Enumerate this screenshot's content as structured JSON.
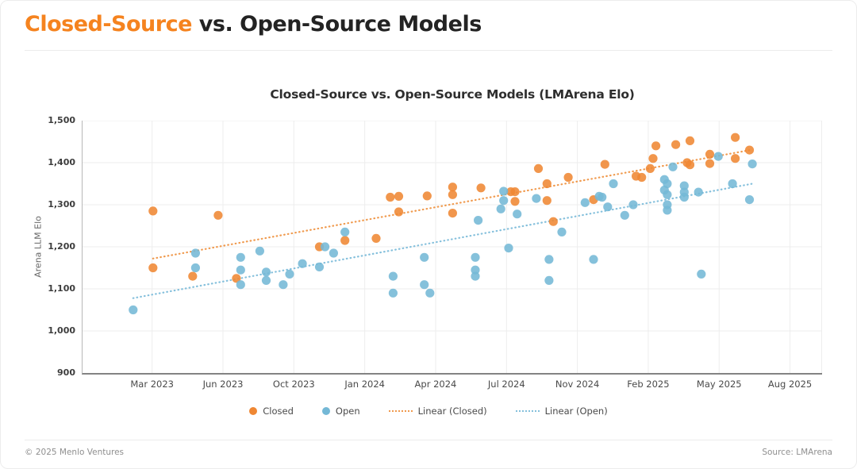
{
  "page": {
    "header": {
      "title_highlight": "Closed-Source",
      "title_rest": " vs. Open-Source Models"
    },
    "footer": {
      "copyright": "© 2025 Menlo Ventures",
      "source": "Source: LMArena"
    }
  },
  "colors": {
    "accent_orange": "#F5831F",
    "closed_dot": "#EF8733",
    "open_dot": "#74B8D6",
    "closed_trend": "#F09A4E",
    "open_trend": "#85C0DC",
    "gridline": "#ededed",
    "axis_left": "#b8b8b8",
    "axis_bottom": "#838383"
  },
  "chart_data": {
    "type": "scatter",
    "title": "Closed-Source vs. Open-Source Models (LMArena Elo)",
    "xlabel": "",
    "ylabel": "Arena LLM Elo",
    "ylim": [
      900,
      1500
    ],
    "grid": true,
    "legend_position": "bottom",
    "yticks": [
      {
        "label": "1,500",
        "value": 1500
      },
      {
        "label": "1,400",
        "value": 1400
      },
      {
        "label": "1,300",
        "value": 1300
      },
      {
        "label": "1,200",
        "value": 1200
      },
      {
        "label": "1,100",
        "value": 1100
      },
      {
        "label": "1,000",
        "value": 1000
      },
      {
        "label": "900",
        "value": 900
      }
    ],
    "xticks": [
      {
        "label": "Mar 2023",
        "date": 2023.167
      },
      {
        "label": "Jun 2023",
        "date": 2023.417
      },
      {
        "label": "Oct 2023",
        "date": 2023.75
      },
      {
        "label": "Jan 2024",
        "date": 2024.0
      },
      {
        "label": "Apr 2024",
        "date": 2024.25
      },
      {
        "label": "Jul 2024",
        "date": 2024.5
      },
      {
        "label": "Nov 2024",
        "date": 2024.833
      },
      {
        "label": "Feb 2025",
        "date": 2025.083
      },
      {
        "label": "May 2025",
        "date": 2025.333
      },
      {
        "label": "Aug 2025",
        "date": 2025.583
      }
    ],
    "series": [
      {
        "name": "Closed",
        "color": "#EF8733",
        "points": [
          [
            2023.17,
            1285
          ],
          [
            2023.17,
            1150
          ],
          [
            2023.31,
            1130
          ],
          [
            2023.4,
            1275
          ],
          [
            2023.48,
            1125
          ],
          [
            2023.84,
            1200
          ],
          [
            2023.93,
            1215
          ],
          [
            2024.04,
            1220
          ],
          [
            2024.09,
            1318
          ],
          [
            2024.12,
            1320
          ],
          [
            2024.12,
            1283
          ],
          [
            2024.22,
            1321
          ],
          [
            2024.31,
            1342
          ],
          [
            2024.31,
            1324
          ],
          [
            2024.31,
            1280
          ],
          [
            2024.41,
            1340
          ],
          [
            2024.52,
            1331
          ],
          [
            2024.54,
            1331
          ],
          [
            2024.54,
            1308
          ],
          [
            2024.65,
            1386
          ],
          [
            2024.69,
            1350
          ],
          [
            2024.69,
            1310
          ],
          [
            2024.72,
            1260
          ],
          [
            2024.79,
            1365
          ],
          [
            2024.89,
            1312
          ],
          [
            2024.93,
            1396
          ],
          [
            2025.04,
            1368
          ],
          [
            2025.06,
            1365
          ],
          [
            2025.09,
            1386
          ],
          [
            2025.1,
            1410
          ],
          [
            2025.11,
            1440
          ],
          [
            2025.18,
            1443
          ],
          [
            2025.22,
            1400
          ],
          [
            2025.23,
            1452
          ],
          [
            2025.23,
            1395
          ],
          [
            2025.3,
            1420
          ],
          [
            2025.3,
            1398
          ],
          [
            2025.39,
            1460
          ],
          [
            2025.39,
            1410
          ],
          [
            2025.44,
            1430
          ]
        ]
      },
      {
        "name": "Open",
        "color": "#74B8D6",
        "points": [
          [
            2023.1,
            1050
          ],
          [
            2023.32,
            1185
          ],
          [
            2023.32,
            1150
          ],
          [
            2023.5,
            1175
          ],
          [
            2023.5,
            1145
          ],
          [
            2023.5,
            1110
          ],
          [
            2023.59,
            1190
          ],
          [
            2023.62,
            1140
          ],
          [
            2023.62,
            1120
          ],
          [
            2023.7,
            1110
          ],
          [
            2023.73,
            1135
          ],
          [
            2023.78,
            1160
          ],
          [
            2023.84,
            1152
          ],
          [
            2023.86,
            1200
          ],
          [
            2023.89,
            1185
          ],
          [
            2023.93,
            1235
          ],
          [
            2024.1,
            1130
          ],
          [
            2024.1,
            1090
          ],
          [
            2024.21,
            1175
          ],
          [
            2024.21,
            1110
          ],
          [
            2024.23,
            1090
          ],
          [
            2024.39,
            1175
          ],
          [
            2024.39,
            1145
          ],
          [
            2024.39,
            1130
          ],
          [
            2024.4,
            1263
          ],
          [
            2024.48,
            1290
          ],
          [
            2024.49,
            1332
          ],
          [
            2024.49,
            1310
          ],
          [
            2024.51,
            1197
          ],
          [
            2024.55,
            1278
          ],
          [
            2024.64,
            1315
          ],
          [
            2024.7,
            1170
          ],
          [
            2024.7,
            1120
          ],
          [
            2024.76,
            1235
          ],
          [
            2024.86,
            1305
          ],
          [
            2024.89,
            1170
          ],
          [
            2024.91,
            1320
          ],
          [
            2024.92,
            1318
          ],
          [
            2024.94,
            1295
          ],
          [
            2024.96,
            1350
          ],
          [
            2025.0,
            1275
          ],
          [
            2025.03,
            1300
          ],
          [
            2025.14,
            1360
          ],
          [
            2025.15,
            1350
          ],
          [
            2025.14,
            1335
          ],
          [
            2025.15,
            1324
          ],
          [
            2025.15,
            1300
          ],
          [
            2025.15,
            1287
          ],
          [
            2025.17,
            1390
          ],
          [
            2025.21,
            1345
          ],
          [
            2025.21,
            1330
          ],
          [
            2025.21,
            1318
          ],
          [
            2025.26,
            1330
          ],
          [
            2025.27,
            1135
          ],
          [
            2025.33,
            1415
          ],
          [
            2025.38,
            1350
          ],
          [
            2025.44,
            1312
          ],
          [
            2025.45,
            1397
          ]
        ]
      }
    ],
    "trendlines": [
      {
        "name": "Linear (Closed)",
        "color": "#F09A4E",
        "start": [
          2023.17,
          1172
        ],
        "end": [
          2025.45,
          1431
        ]
      },
      {
        "name": "Linear (Open)",
        "color": "#85C0DC",
        "start": [
          2023.1,
          1078
        ],
        "end": [
          2025.45,
          1350
        ]
      }
    ],
    "legend": [
      "Closed",
      "Open",
      "Linear (Closed)",
      "Linear (Open)"
    ]
  }
}
